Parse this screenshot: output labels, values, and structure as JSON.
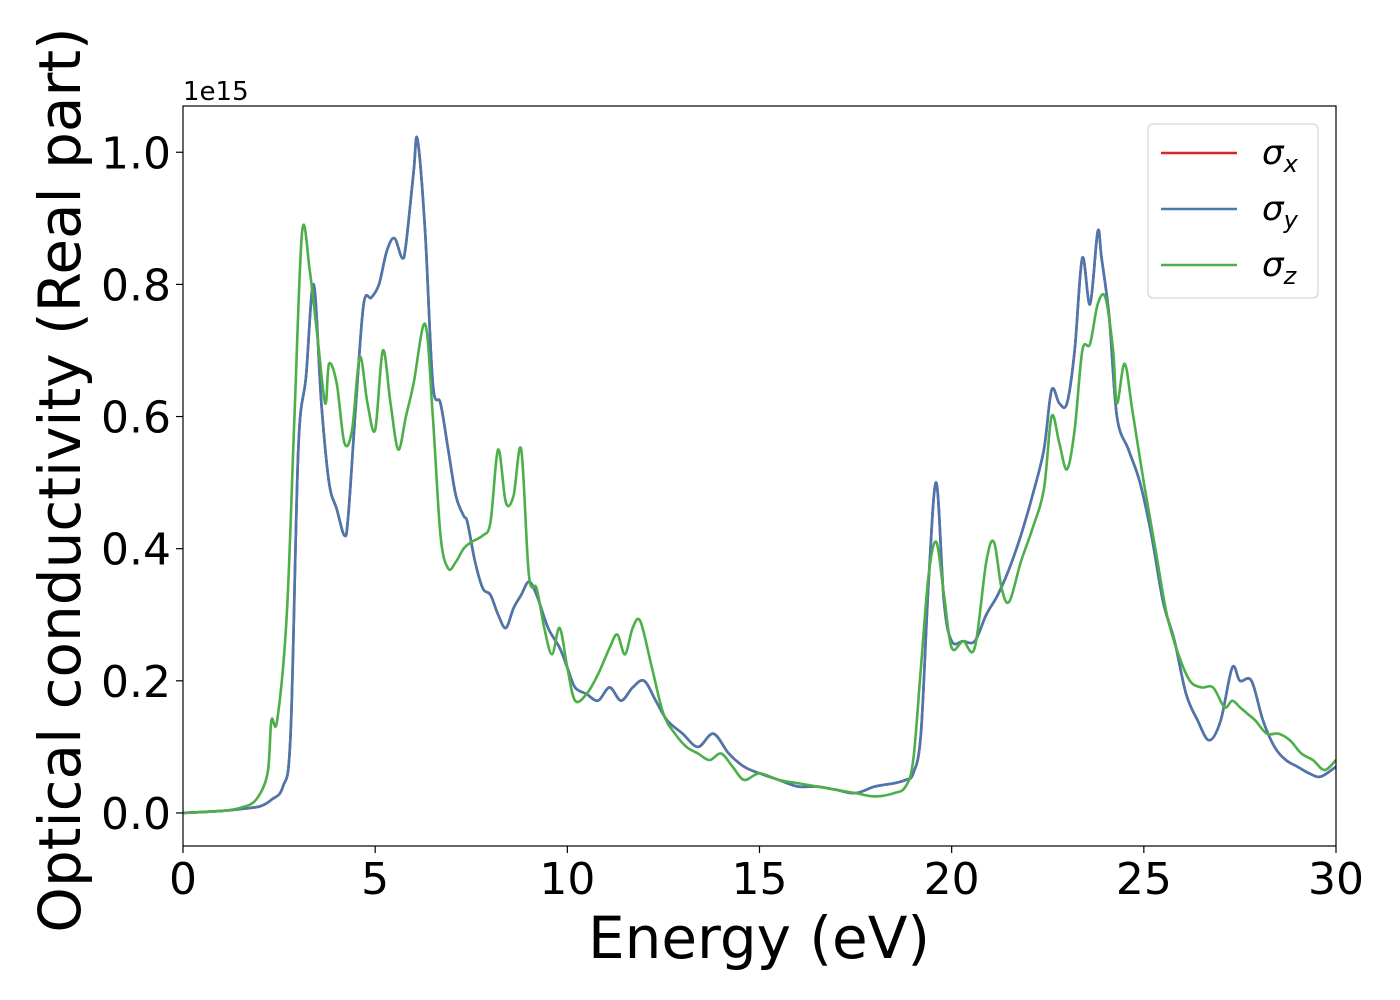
{
  "chart_data": {
    "type": "line",
    "xlabel": "Energy (eV)",
    "ylabel": "Optical conductivity (Real part)",
    "offset_label": "1e15",
    "xlim": [
      0,
      30
    ],
    "ylim": [
      -0.05,
      1.07
    ],
    "x_ticks": [
      0,
      5,
      10,
      15,
      20,
      25,
      30
    ],
    "x_tick_labels": [
      "0",
      "5",
      "10",
      "15",
      "20",
      "25",
      "30"
    ],
    "y_ticks": [
      0.0,
      0.2,
      0.4,
      0.6,
      0.8,
      1.0
    ],
    "y_tick_labels": [
      "0.0",
      "0.2",
      "0.4",
      "0.6",
      "0.8",
      "1.0"
    ],
    "grid": false,
    "legend_position": "top-right",
    "series": [
      {
        "name": "σx",
        "symbol": "σ",
        "subscript": "x",
        "color": "#d62728",
        "x": [
          0,
          1,
          1.5,
          2,
          2.3,
          2.6,
          2.8,
          3.0,
          3.2,
          3.4,
          3.6,
          3.8,
          4.0,
          4.2,
          4.3,
          4.5,
          4.7,
          4.9,
          5.1,
          5.3,
          5.5,
          5.7,
          5.8,
          6.0,
          6.1,
          6.3,
          6.5,
          6.7,
          6.9,
          7.1,
          7.3,
          7.4,
          7.6,
          7.8,
          8.0,
          8.2,
          8.4,
          8.6,
          8.8,
          9.0,
          9.2,
          9.5,
          9.8,
          10.0,
          10.2,
          10.5,
          10.8,
          11.1,
          11.4,
          11.7,
          12.0,
          12.3,
          12.6,
          13.0,
          13.4,
          13.8,
          14.2,
          14.6,
          15.0,
          15.5,
          16.0,
          16.5,
          17.0,
          17.5,
          18.0,
          18.5,
          18.8,
          19.0,
          19.2,
          19.4,
          19.6,
          19.8,
          20.0,
          20.3,
          20.6,
          20.9,
          21.2,
          21.5,
          21.8,
          22.1,
          22.4,
          22.6,
          22.8,
          23.0,
          23.2,
          23.4,
          23.6,
          23.8,
          23.9,
          24.1,
          24.3,
          24.6,
          24.9,
          25.2,
          25.5,
          25.8,
          26.1,
          26.4,
          26.7,
          27.0,
          27.3,
          27.5,
          27.8,
          28.1,
          28.4,
          28.7,
          29.0,
          29.3,
          29.6,
          30.0
        ],
        "values": [
          0.0,
          0.003,
          0.006,
          0.01,
          0.02,
          0.04,
          0.12,
          0.55,
          0.66,
          0.8,
          0.62,
          0.5,
          0.46,
          0.42,
          0.45,
          0.62,
          0.77,
          0.78,
          0.8,
          0.85,
          0.87,
          0.84,
          0.86,
          0.97,
          1.02,
          0.88,
          0.65,
          0.62,
          0.55,
          0.48,
          0.45,
          0.44,
          0.38,
          0.34,
          0.33,
          0.3,
          0.28,
          0.31,
          0.33,
          0.35,
          0.33,
          0.28,
          0.25,
          0.22,
          0.19,
          0.18,
          0.17,
          0.19,
          0.17,
          0.19,
          0.2,
          0.17,
          0.14,
          0.12,
          0.1,
          0.12,
          0.09,
          0.07,
          0.06,
          0.05,
          0.04,
          0.04,
          0.035,
          0.03,
          0.04,
          0.045,
          0.05,
          0.06,
          0.12,
          0.35,
          0.5,
          0.32,
          0.26,
          0.26,
          0.26,
          0.3,
          0.33,
          0.37,
          0.42,
          0.48,
          0.55,
          0.64,
          0.62,
          0.62,
          0.7,
          0.84,
          0.77,
          0.88,
          0.84,
          0.75,
          0.6,
          0.55,
          0.5,
          0.42,
          0.32,
          0.26,
          0.18,
          0.14,
          0.11,
          0.14,
          0.22,
          0.2,
          0.2,
          0.14,
          0.1,
          0.08,
          0.07,
          0.06,
          0.055,
          0.07
        ]
      },
      {
        "name": "σy",
        "symbol": "σ",
        "subscript": "y",
        "color": "#4a77ae",
        "x": [
          0,
          1,
          1.5,
          2,
          2.3,
          2.6,
          2.8,
          3.0,
          3.2,
          3.4,
          3.6,
          3.8,
          4.0,
          4.2,
          4.3,
          4.5,
          4.7,
          4.9,
          5.1,
          5.3,
          5.5,
          5.7,
          5.8,
          6.0,
          6.1,
          6.3,
          6.5,
          6.7,
          6.9,
          7.1,
          7.3,
          7.4,
          7.6,
          7.8,
          8.0,
          8.2,
          8.4,
          8.6,
          8.8,
          9.0,
          9.2,
          9.5,
          9.8,
          10.0,
          10.2,
          10.5,
          10.8,
          11.1,
          11.4,
          11.7,
          12.0,
          12.3,
          12.6,
          13.0,
          13.4,
          13.8,
          14.2,
          14.6,
          15.0,
          15.5,
          16.0,
          16.5,
          17.0,
          17.5,
          18.0,
          18.5,
          18.8,
          19.0,
          19.2,
          19.4,
          19.6,
          19.8,
          20.0,
          20.3,
          20.6,
          20.9,
          21.2,
          21.5,
          21.8,
          22.1,
          22.4,
          22.6,
          22.8,
          23.0,
          23.2,
          23.4,
          23.6,
          23.8,
          23.9,
          24.1,
          24.3,
          24.6,
          24.9,
          25.2,
          25.5,
          25.8,
          26.1,
          26.4,
          26.7,
          27.0,
          27.3,
          27.5,
          27.8,
          28.1,
          28.4,
          28.7,
          29.0,
          29.3,
          29.6,
          30.0
        ],
        "values": [
          0.0,
          0.003,
          0.006,
          0.01,
          0.02,
          0.04,
          0.12,
          0.55,
          0.66,
          0.8,
          0.62,
          0.5,
          0.46,
          0.42,
          0.45,
          0.62,
          0.77,
          0.78,
          0.8,
          0.85,
          0.87,
          0.84,
          0.86,
          0.97,
          1.02,
          0.88,
          0.65,
          0.62,
          0.55,
          0.48,
          0.45,
          0.44,
          0.38,
          0.34,
          0.33,
          0.3,
          0.28,
          0.31,
          0.33,
          0.35,
          0.33,
          0.28,
          0.25,
          0.22,
          0.19,
          0.18,
          0.17,
          0.19,
          0.17,
          0.19,
          0.2,
          0.17,
          0.14,
          0.12,
          0.1,
          0.12,
          0.09,
          0.07,
          0.06,
          0.05,
          0.04,
          0.04,
          0.035,
          0.03,
          0.04,
          0.045,
          0.05,
          0.06,
          0.12,
          0.35,
          0.5,
          0.32,
          0.26,
          0.26,
          0.26,
          0.3,
          0.33,
          0.37,
          0.42,
          0.48,
          0.55,
          0.64,
          0.62,
          0.62,
          0.7,
          0.84,
          0.77,
          0.88,
          0.84,
          0.75,
          0.6,
          0.55,
          0.5,
          0.42,
          0.32,
          0.26,
          0.18,
          0.14,
          0.11,
          0.14,
          0.22,
          0.2,
          0.2,
          0.14,
          0.1,
          0.08,
          0.07,
          0.06,
          0.055,
          0.07
        ]
      },
      {
        "name": "σz",
        "symbol": "σ",
        "subscript": "z",
        "color": "#4daf4a",
        "x": [
          0,
          1,
          1.5,
          1.9,
          2.2,
          2.3,
          2.45,
          2.7,
          2.9,
          3.1,
          3.3,
          3.5,
          3.7,
          3.8,
          4.0,
          4.2,
          4.4,
          4.6,
          4.8,
          5.0,
          5.2,
          5.4,
          5.6,
          5.8,
          6.0,
          6.3,
          6.5,
          6.7,
          6.9,
          7.1,
          7.3,
          7.5,
          7.8,
          8.0,
          8.2,
          8.4,
          8.6,
          8.8,
          9.0,
          9.2,
          9.4,
          9.6,
          9.8,
          10.0,
          10.2,
          10.5,
          10.8,
          11.1,
          11.3,
          11.5,
          11.7,
          11.9,
          12.2,
          12.5,
          12.8,
          13.1,
          13.4,
          13.7,
          14.0,
          14.3,
          14.6,
          15.0,
          15.5,
          16.0,
          16.5,
          17.0,
          17.5,
          18.0,
          18.5,
          18.8,
          19.0,
          19.2,
          19.4,
          19.6,
          19.8,
          20.0,
          20.3,
          20.6,
          20.9,
          21.1,
          21.3,
          21.5,
          21.8,
          22.1,
          22.4,
          22.6,
          22.8,
          23.0,
          23.2,
          23.4,
          23.6,
          23.8,
          24.0,
          24.2,
          24.3,
          24.5,
          24.7,
          25.0,
          25.3,
          25.6,
          25.9,
          26.2,
          26.5,
          26.8,
          27.1,
          27.3,
          27.5,
          27.7,
          27.9,
          28.2,
          28.5,
          28.8,
          29.1,
          29.4,
          29.7,
          30.0
        ],
        "values": [
          0.0,
          0.003,
          0.008,
          0.02,
          0.06,
          0.14,
          0.14,
          0.3,
          0.6,
          0.88,
          0.82,
          0.72,
          0.62,
          0.68,
          0.65,
          0.56,
          0.58,
          0.69,
          0.62,
          0.58,
          0.7,
          0.62,
          0.55,
          0.6,
          0.65,
          0.74,
          0.6,
          0.42,
          0.37,
          0.38,
          0.4,
          0.41,
          0.42,
          0.44,
          0.55,
          0.47,
          0.48,
          0.55,
          0.36,
          0.34,
          0.28,
          0.24,
          0.28,
          0.22,
          0.17,
          0.18,
          0.21,
          0.25,
          0.27,
          0.24,
          0.28,
          0.29,
          0.22,
          0.15,
          0.12,
          0.1,
          0.09,
          0.08,
          0.09,
          0.07,
          0.05,
          0.06,
          0.05,
          0.045,
          0.04,
          0.035,
          0.03,
          0.025,
          0.03,
          0.04,
          0.08,
          0.22,
          0.36,
          0.41,
          0.33,
          0.25,
          0.26,
          0.25,
          0.38,
          0.41,
          0.34,
          0.32,
          0.38,
          0.43,
          0.49,
          0.6,
          0.56,
          0.52,
          0.58,
          0.7,
          0.71,
          0.77,
          0.78,
          0.7,
          0.62,
          0.68,
          0.61,
          0.5,
          0.4,
          0.3,
          0.24,
          0.2,
          0.19,
          0.19,
          0.16,
          0.17,
          0.16,
          0.15,
          0.14,
          0.12,
          0.12,
          0.11,
          0.09,
          0.08,
          0.065,
          0.08
        ]
      }
    ]
  }
}
